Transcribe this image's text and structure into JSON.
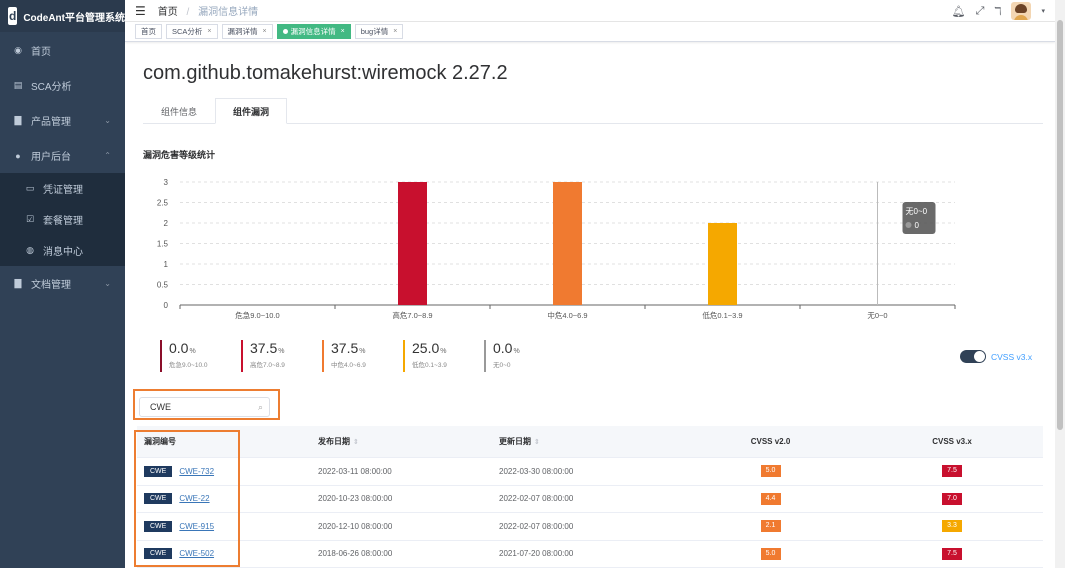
{
  "app": {
    "name": "CodeAnt平台管理系统",
    "logo_letter": "d"
  },
  "sidebar": {
    "items": [
      {
        "label": "首页",
        "icon": "dashboard-icon"
      },
      {
        "label": "SCA分析",
        "icon": "list-icon"
      },
      {
        "label": "产品管理",
        "icon": "document-icon"
      },
      {
        "label": "用户后台",
        "icon": "user-icon"
      },
      {
        "label": "凭证管理",
        "icon": "card-icon"
      },
      {
        "label": "套餐管理",
        "icon": "checkbox-icon"
      },
      {
        "label": "消息中心",
        "icon": "globe-icon"
      },
      {
        "label": "文档管理",
        "icon": "document-icon"
      }
    ]
  },
  "header": {
    "breadcrumb_home": "首页",
    "breadcrumb_separator": "/",
    "breadcrumb_current": "漏洞信息详情"
  },
  "tags_view": [
    "首页",
    "SCA分析",
    "漏洞详情",
    "漏洞信息详情",
    "bug详情"
  ],
  "page": {
    "title": "com.github.tomakehurst:wiremock 2.27.2",
    "tabs": [
      "组件信息",
      "组件漏洞"
    ],
    "active_tab": "组件漏洞",
    "chart_section_title": "漏洞危害等级统计"
  },
  "colors": {
    "critical": "#c8102e",
    "high": "#c8102e",
    "medium": "#f07a30",
    "low": "#f5a800",
    "none": "#999999",
    "accent": "#409eff",
    "highlight": "#ed7d31"
  },
  "chart_data": {
    "type": "bar",
    "categories": [
      "危急9.0~10.0",
      "高危7.0~8.9",
      "中危4.0~6.9",
      "低危0.1~3.9",
      "无0~0"
    ],
    "values": [
      0,
      3,
      3,
      2,
      0
    ],
    "bar_colors": [
      "#c8102e",
      "#c8102e",
      "#f07a30",
      "#f5a800",
      "#999999"
    ],
    "yticks": [
      "0",
      "0.5",
      "1",
      "1.5",
      "2",
      "2.5",
      "3"
    ],
    "ylim": [
      0,
      3
    ],
    "grid": "horizontal-dashed",
    "tooltip": {
      "title": "无0~0",
      "value": "0"
    }
  },
  "stats": [
    {
      "value": "0.0",
      "unit": "%",
      "label": "危急9.0~10.0",
      "color": "#8b0e2a"
    },
    {
      "value": "37.5",
      "unit": "%",
      "label": "高危7.0~8.9",
      "color": "#c8102e"
    },
    {
      "value": "37.5",
      "unit": "%",
      "label": "中危4.0~6.9",
      "color": "#f07a30"
    },
    {
      "value": "25.0",
      "unit": "%",
      "label": "低危0.1~3.9",
      "color": "#f5a800"
    },
    {
      "value": "0.0",
      "unit": "%",
      "label": "无0~0",
      "color": "#999999"
    }
  ],
  "toggle": {
    "label": "CVSS v3.x",
    "on": true
  },
  "search": {
    "value": "CWE"
  },
  "table": {
    "headers": [
      "漏洞编号",
      "发布日期",
      "更新日期",
      "CVSS v2.0",
      "CVSS v3.x"
    ],
    "rows": [
      {
        "tag": "CWE",
        "id": "CWE-732",
        "published": "2022-03-11 08:00:00",
        "updated": "2022-03-30 08:00:00",
        "cvss2": "5.0",
        "cvss2_color": "#f07a30",
        "cvss3": "7.5",
        "cvss3_color": "#c8102e"
      },
      {
        "tag": "CWE",
        "id": "CWE-22",
        "published": "2020-10-23 08:00:00",
        "updated": "2022-02-07 08:00:00",
        "cvss2": "4.4",
        "cvss2_color": "#f07a30",
        "cvss3": "7.0",
        "cvss3_color": "#c8102e"
      },
      {
        "tag": "CWE",
        "id": "CWE-915",
        "published": "2020-12-10 08:00:00",
        "updated": "2022-02-07 08:00:00",
        "cvss2": "2.1",
        "cvss2_color": "#f07a30",
        "cvss3": "3.3",
        "cvss3_color": "#f5a800"
      },
      {
        "tag": "CWE",
        "id": "CWE-502",
        "published": "2018-06-26 08:00:00",
        "updated": "2021-07-20 08:00:00",
        "cvss2": "5.0",
        "cvss2_color": "#f07a30",
        "cvss3": "7.5",
        "cvss3_color": "#c8102e"
      }
    ]
  }
}
